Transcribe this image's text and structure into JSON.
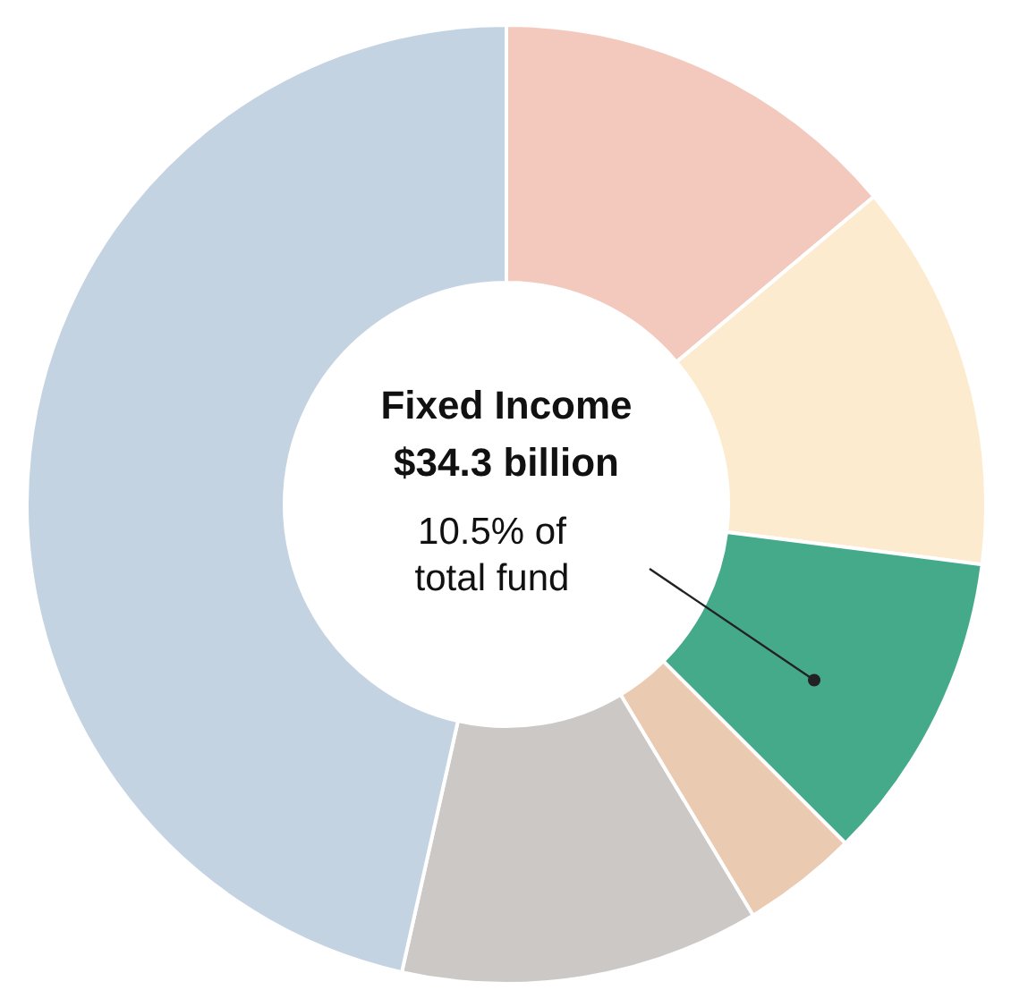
{
  "chart_data": {
    "type": "donut",
    "title": "Fixed Income",
    "subtitle": "$34.3 billion",
    "annotations": [
      "10.5% of total fund"
    ],
    "categories": [
      null,
      null,
      null,
      null,
      null,
      null
    ],
    "values": [
      13.9,
      13.1,
      10.5,
      3.9,
      12.1,
      46.5
    ],
    "colors": [
      "#f4c9bd",
      "#fdebd0",
      "#45aa8a",
      "#ebcab2",
      "#cbc8c5",
      "#c4d3e2"
    ]
  }
}
